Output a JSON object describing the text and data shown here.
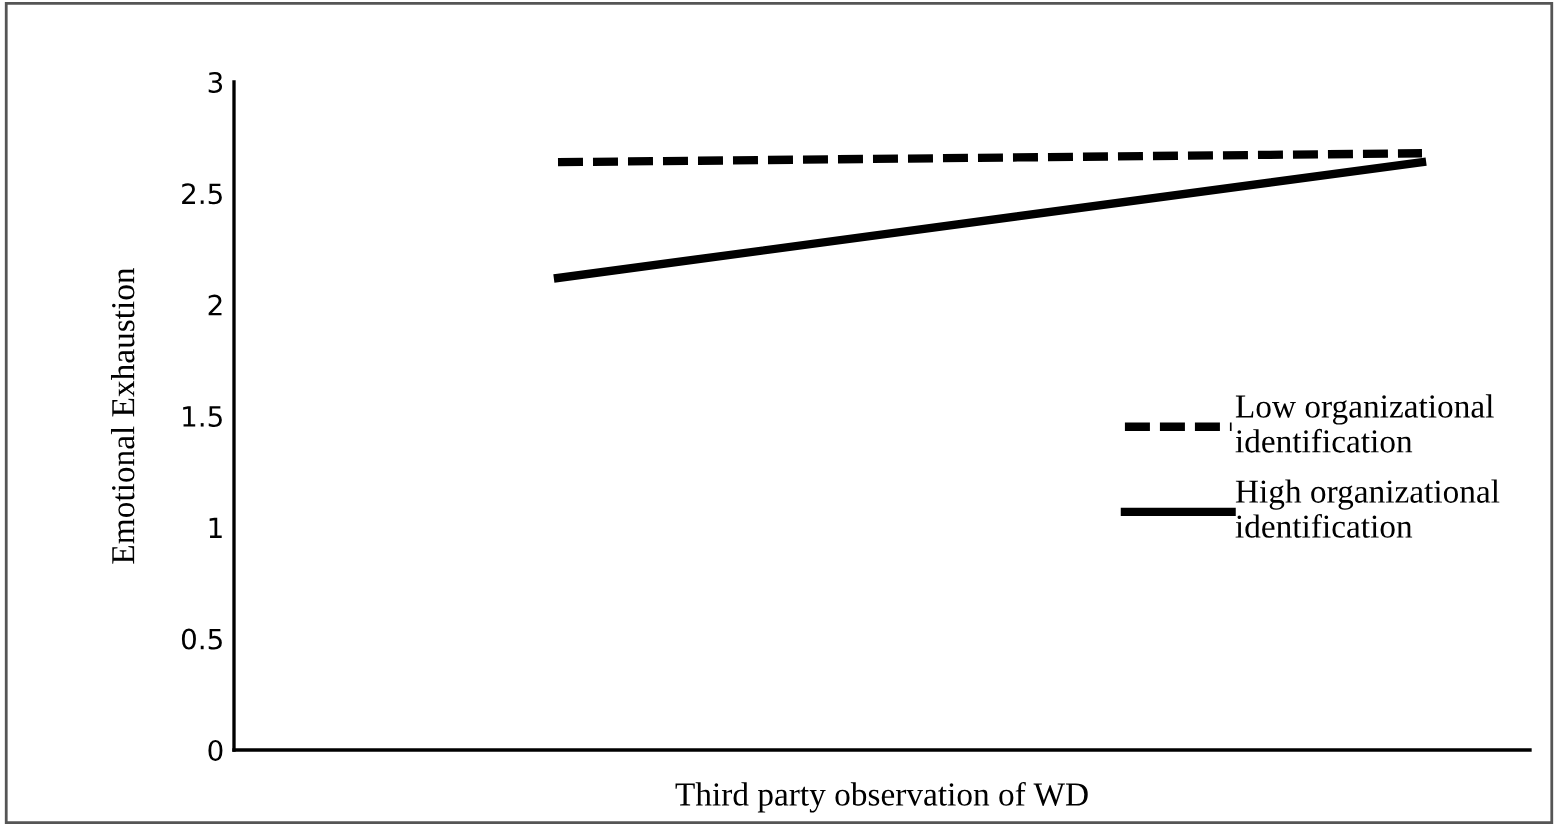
{
  "chart_data": {
    "type": "line",
    "xlabel": "Third party observation of WD",
    "ylabel": "Emotional Exhaustion",
    "categories": [
      null,
      null,
      null,
      null,
      null,
      null
    ],
    "series": [
      {
        "name": "Low organizational\nidentification",
        "color": "#000000",
        "line_style": "dashed",
        "values": [
          null,
          2.64,
          null,
          null,
          null,
          2.68
        ]
      },
      {
        "name": "High organizational\nidentification",
        "color": "#000000",
        "line_style": "solid",
        "values": [
          null,
          2.12,
          null,
          null,
          null,
          2.64
        ]
      }
    ],
    "ylim": [
      0,
      3
    ],
    "yticks": [
      0,
      0.5,
      1,
      1.5,
      2,
      2.5,
      3
    ],
    "grid": false,
    "legend": "right",
    "marker": "none"
  }
}
